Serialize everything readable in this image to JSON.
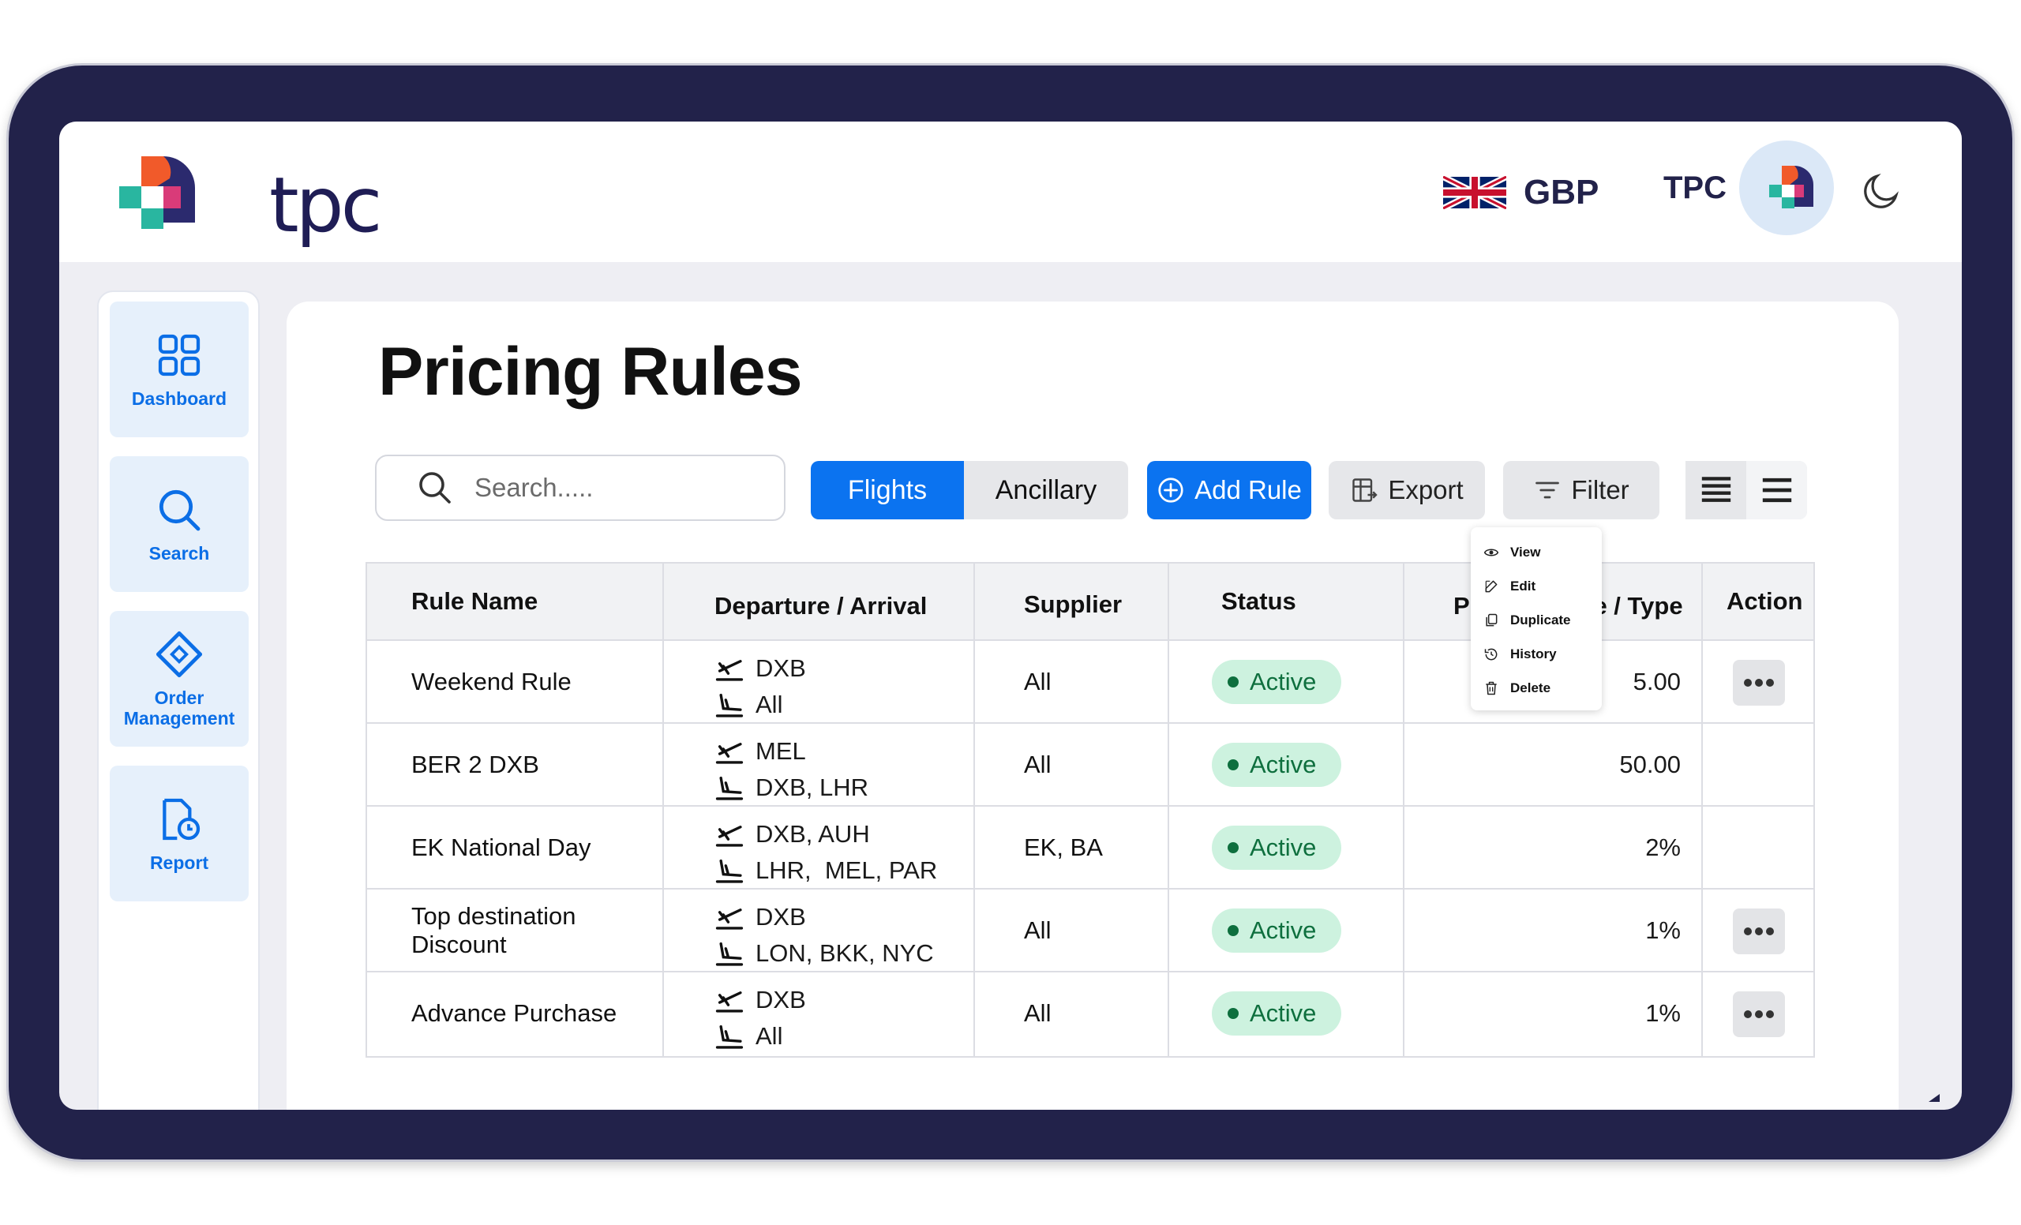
{
  "brand": {
    "name": "tpc"
  },
  "header": {
    "currency": "GBP",
    "user": "TPC",
    "icons": [
      "uk-flag-icon",
      "avatar-logo-icon",
      "moon-icon"
    ]
  },
  "sidebar": {
    "items": [
      {
        "label": "Dashboard",
        "icon": "dashboard-grid-icon"
      },
      {
        "label": "Search",
        "icon": "search-icon"
      },
      {
        "label": "Order Management",
        "icon": "ticket-icon"
      },
      {
        "label": "Report",
        "icon": "report-clock-icon"
      }
    ]
  },
  "main": {
    "title": "Pricing Rules",
    "search": {
      "placeholder": "Search....."
    },
    "segments": {
      "flights": "Flights",
      "ancillary": "Ancillary",
      "selected": "Flights"
    },
    "actions": {
      "add": "Add Rule",
      "export": "Export",
      "filter": "Filter"
    }
  },
  "table": {
    "headers": {
      "rule_name": "Rule Name",
      "route": "Departure / Arrival",
      "supplier": "Supplier",
      "status": "Status",
      "pricing": "Pricing Value / Type",
      "action": "Action"
    },
    "rows": [
      {
        "name": "Weekend Rule",
        "departure": "DXB",
        "arrival": "All",
        "supplier": "All",
        "status": "Active",
        "value": "5.00"
      },
      {
        "name": "BER 2 DXB",
        "departure": "MEL",
        "arrival": "DXB, LHR",
        "supplier": "All",
        "status": "Active",
        "value": "50.00"
      },
      {
        "name": "EK National Day",
        "departure": "DXB, AUH",
        "arrival": "LHR,  MEL, PAR",
        "supplier": "EK, BA",
        "status": "Active",
        "value": "2%"
      },
      {
        "name": "Top destination Discount",
        "departure": "DXB",
        "arrival": "LON, BKK, NYC",
        "supplier": "All",
        "status": "Active",
        "value": "1%"
      },
      {
        "name": "Advance Purchase",
        "departure": "DXB",
        "arrival": "All",
        "supplier": "All",
        "status": "Active",
        "value": "1%"
      }
    ]
  },
  "context_menu": {
    "items": [
      {
        "label": "View",
        "icon": "eye-icon"
      },
      {
        "label": "Edit",
        "icon": "edit-icon"
      },
      {
        "label": "Duplicate",
        "icon": "duplicate-icon"
      },
      {
        "label": "History",
        "icon": "history-icon"
      },
      {
        "label": "Delete",
        "icon": "trash-icon"
      }
    ]
  },
  "colors": {
    "primary": "#0b73f0",
    "navy": "#22224a",
    "active_bg": "#cdf2df",
    "active_text": "#0e6f3e"
  }
}
